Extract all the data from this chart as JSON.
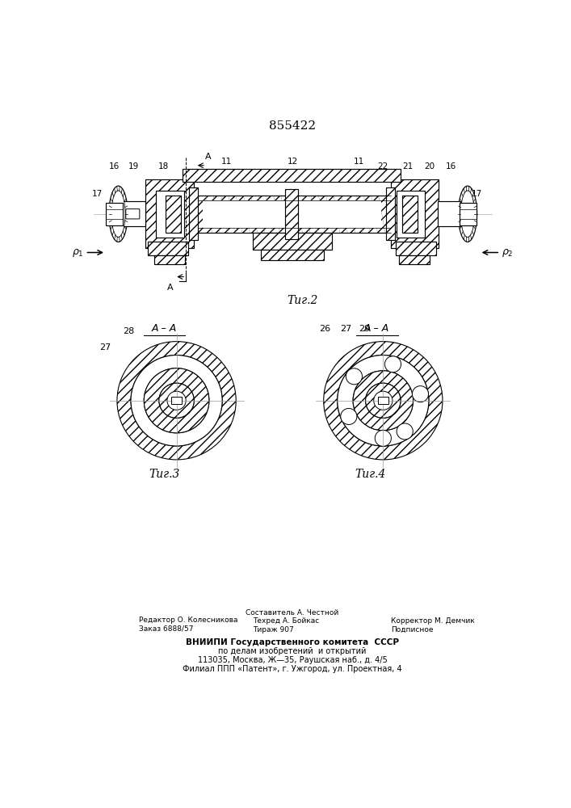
{
  "patent_number": "855422",
  "bg_color": "#ffffff",
  "line_color": "#000000",
  "fig2_label": "Τиг.2",
  "fig3_label": "Τиг.3",
  "fig4_label": "Τиг.4",
  "footer_line1_left": "Редактор О. Колесникова",
  "footer_line2_left": "Заказ 6888/57",
  "footer_line1_center": "Составитель А. Честной",
  "footer_line2_center": "Техред А. Бойкас",
  "footer_line3_center": "Тираж 907",
  "footer_line1_right": "Корректор М. Демчик",
  "footer_line2_right": "Подписное",
  "footer_vniip1": "ВНИИПИ Государственного комитета  СССР",
  "footer_vniip2": "по делам изобретений  и открытий",
  "footer_vniip3": "113035, Москва, Ж—35, Раушская наб., д. 4/5",
  "footer_vniip4": "Филиал ППП «Патент», г. Ужгород, ул. Проектная, 4"
}
